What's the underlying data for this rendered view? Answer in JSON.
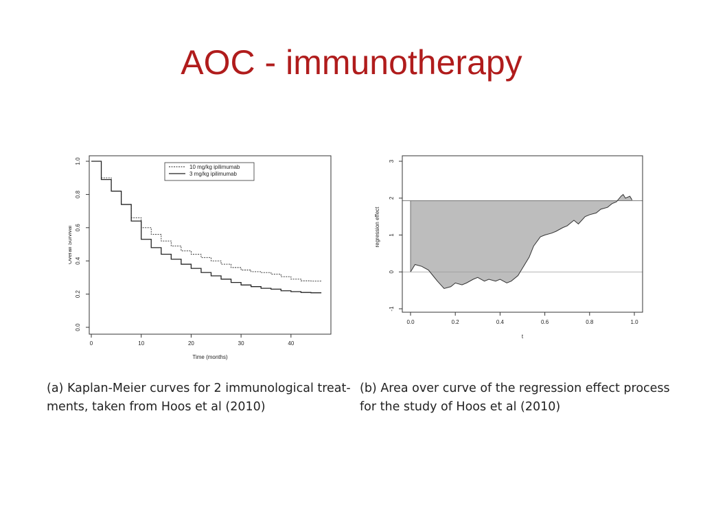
{
  "slide": {
    "title": "AOC - immunotherapy"
  },
  "captions": {
    "a": {
      "line1": "(a) Kaplan-Meier curves for 2 immunological treat-",
      "line2": "ments, taken from Hoos et al (2010)"
    },
    "b": {
      "line1": "(b) Area over curve of the regression effect process",
      "line2": "for the study of Hoos et al (2010)"
    }
  },
  "chart_data": [
    {
      "type": "line",
      "title": "",
      "xlabel": "Time (months)",
      "ylabel": "Overall Survival",
      "xlim": [
        0,
        48
      ],
      "ylim": [
        0,
        1.0
      ],
      "xticks": [
        0,
        10,
        20,
        30,
        40
      ],
      "yticks": [
        0.0,
        0.2,
        0.4,
        0.6,
        0.8,
        1.0
      ],
      "grid": false,
      "legend": "top-right",
      "series": [
        {
          "name": "10 mg/kg ipilimumab",
          "style": "dashed",
          "x": [
            0,
            2,
            4,
            6,
            8,
            10,
            12,
            14,
            16,
            18,
            20,
            22,
            24,
            26,
            28,
            30,
            32,
            34,
            36,
            38,
            40,
            42,
            44,
            46
          ],
          "y": [
            1.0,
            0.9,
            0.82,
            0.74,
            0.66,
            0.6,
            0.56,
            0.52,
            0.49,
            0.46,
            0.44,
            0.42,
            0.4,
            0.38,
            0.36,
            0.345,
            0.335,
            0.33,
            0.32,
            0.305,
            0.29,
            0.28,
            0.278,
            0.275
          ]
        },
        {
          "name": "3 mg/kg ipilimumab",
          "style": "solid",
          "x": [
            0,
            2,
            4,
            6,
            8,
            10,
            12,
            14,
            16,
            18,
            20,
            22,
            24,
            26,
            28,
            30,
            32,
            34,
            36,
            38,
            40,
            42,
            44,
            46
          ],
          "y": [
            1.0,
            0.89,
            0.82,
            0.74,
            0.64,
            0.53,
            0.48,
            0.44,
            0.41,
            0.38,
            0.355,
            0.33,
            0.31,
            0.29,
            0.27,
            0.255,
            0.245,
            0.235,
            0.23,
            0.22,
            0.215,
            0.21,
            0.208,
            0.205
          ]
        }
      ]
    },
    {
      "type": "area",
      "title": "",
      "xlabel": "t",
      "ylabel": "regression effect",
      "xlim": [
        0,
        1.0
      ],
      "ylim": [
        -1,
        3
      ],
      "xticks": [
        0.0,
        0.2,
        0.4,
        0.6,
        0.8,
        1.0
      ],
      "yticks": [
        -1,
        0,
        1,
        2,
        3
      ],
      "grid": false,
      "reference_lines": [
        0,
        1.93
      ],
      "series": [
        {
          "name": "",
          "x": [
            0.0,
            0.02,
            0.05,
            0.08,
            0.1,
            0.12,
            0.15,
            0.18,
            0.2,
            0.23,
            0.25,
            0.28,
            0.3,
            0.33,
            0.35,
            0.38,
            0.4,
            0.43,
            0.45,
            0.48,
            0.5,
            0.53,
            0.55,
            0.58,
            0.6,
            0.63,
            0.65,
            0.68,
            0.7,
            0.73,
            0.75,
            0.78,
            0.8,
            0.83,
            0.85,
            0.88,
            0.9,
            0.92,
            0.94,
            0.95,
            0.96,
            0.98,
            0.99
          ],
          "y": [
            0.0,
            0.2,
            0.15,
            0.05,
            -0.1,
            -0.25,
            -0.45,
            -0.4,
            -0.3,
            -0.35,
            -0.3,
            -0.2,
            -0.15,
            -0.25,
            -0.2,
            -0.25,
            -0.2,
            -0.3,
            -0.25,
            -0.1,
            0.1,
            0.4,
            0.7,
            0.95,
            1.0,
            1.05,
            1.1,
            1.2,
            1.25,
            1.4,
            1.3,
            1.5,
            1.55,
            1.6,
            1.7,
            1.75,
            1.85,
            1.9,
            2.05,
            2.1,
            2.0,
            2.05,
            1.95
          ]
        }
      ]
    }
  ]
}
